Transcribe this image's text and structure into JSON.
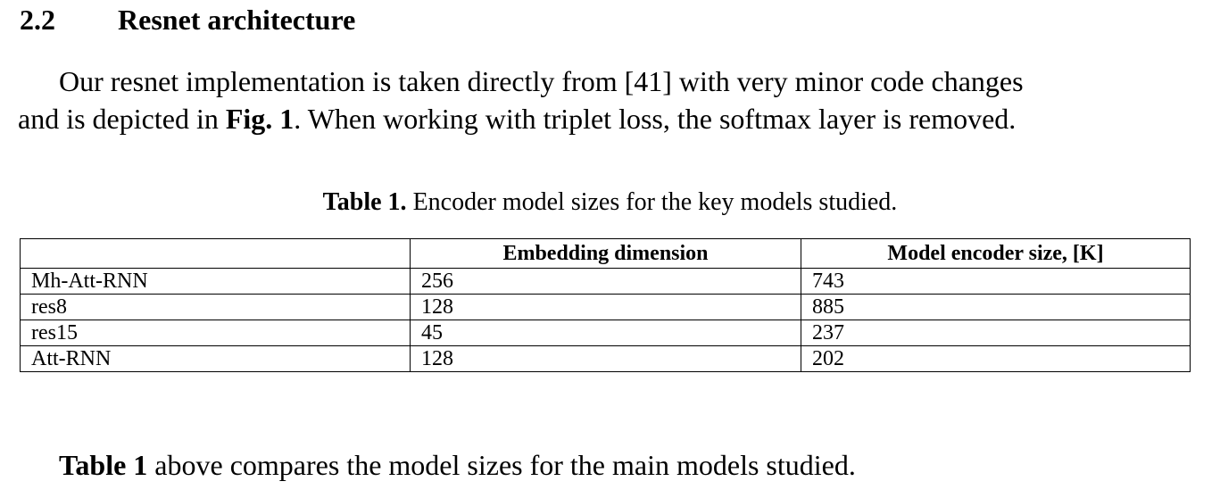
{
  "section": {
    "number": "2.2",
    "title": "Resnet architecture"
  },
  "paragraph": {
    "part1": "Our resnet implementation is taken directly from [41] with very minor code changes",
    "part2": "and is depicted in ",
    "fig_ref": "Fig. 1",
    "part3": ". When working with triplet loss, the softmax layer is removed."
  },
  "table": {
    "caption_label": "Table 1.",
    "caption_text": " Encoder model sizes for the key models studied.",
    "headers": [
      "",
      "Embedding dimension",
      "Model encoder size, [K]"
    ],
    "rows": [
      [
        "Mh-Att-RNN",
        "256",
        "743"
      ],
      [
        "res8",
        "128",
        "885"
      ],
      [
        "res15",
        "45",
        "237"
      ],
      [
        "Att-RNN",
        "128",
        "202"
      ]
    ]
  },
  "closing": {
    "ref": "Table 1",
    "text": " above compares the model sizes for the main models studied."
  }
}
